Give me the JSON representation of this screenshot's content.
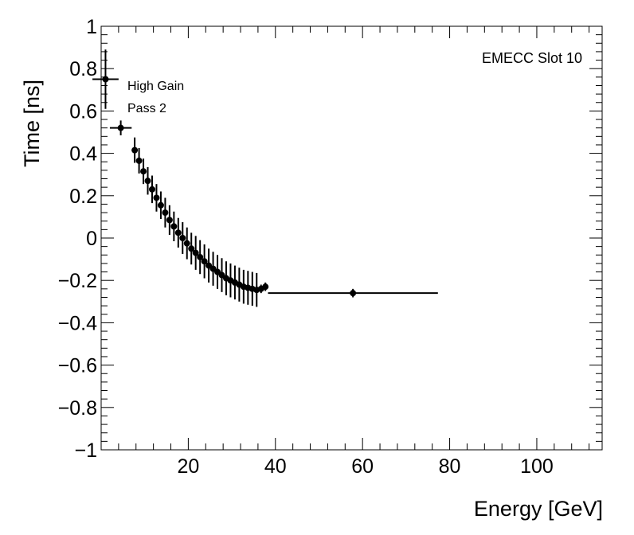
{
  "chart_data": {
    "type": "scatter",
    "title": "",
    "xlabel": "Energy [GeV]",
    "ylabel": "Time [ns]",
    "xlim": [
      0,
      115
    ],
    "ylim": [
      -1,
      1
    ],
    "x_ticks": [
      20,
      40,
      60,
      80,
      100
    ],
    "x_tick_labels": [
      "20",
      "40",
      "60",
      "80",
      "100"
    ],
    "y_ticks": [
      -1,
      -0.8,
      -0.6,
      -0.4,
      -0.2,
      0,
      0.2,
      0.4,
      0.6,
      0.8,
      1
    ],
    "y_tick_labels": [
      "−1",
      "−0.8",
      "−0.6",
      "−0.4",
      "−0.2",
      "0",
      "0.2",
      "0.4",
      "0.6",
      "0.8",
      "1"
    ],
    "annotations": [
      "High Gain",
      "Pass 2"
    ],
    "corner_label": "EMECC Slot 10",
    "series": [
      {
        "name": "High Gain Pass 2",
        "marker_color": "#000000",
        "points": [
          {
            "x": 1.0,
            "y": 0.75,
            "xerr": 3.0,
            "yerr": 0.14
          },
          {
            "x": 4.5,
            "y": 0.52,
            "xerr": 2.5,
            "yerr": 0.035
          },
          {
            "x": 7.7,
            "y": 0.415,
            "xerr": 0.5,
            "yerr": 0.06
          },
          {
            "x": 8.7,
            "y": 0.365,
            "xerr": 0.5,
            "yerr": 0.06
          },
          {
            "x": 9.7,
            "y": 0.315,
            "xerr": 0.5,
            "yerr": 0.06
          },
          {
            "x": 10.7,
            "y": 0.27,
            "xerr": 0.5,
            "yerr": 0.065
          },
          {
            "x": 11.7,
            "y": 0.23,
            "xerr": 0.5,
            "yerr": 0.065
          },
          {
            "x": 12.7,
            "y": 0.19,
            "xerr": 0.5,
            "yerr": 0.065
          },
          {
            "x": 13.7,
            "y": 0.155,
            "xerr": 0.5,
            "yerr": 0.065
          },
          {
            "x": 14.7,
            "y": 0.12,
            "xerr": 0.5,
            "yerr": 0.07
          },
          {
            "x": 15.7,
            "y": 0.085,
            "xerr": 0.5,
            "yerr": 0.07
          },
          {
            "x": 16.7,
            "y": 0.055,
            "xerr": 0.5,
            "yerr": 0.07
          },
          {
            "x": 17.7,
            "y": 0.025,
            "xerr": 0.5,
            "yerr": 0.07
          },
          {
            "x": 18.7,
            "y": 0.0,
            "xerr": 0.5,
            "yerr": 0.075
          },
          {
            "x": 19.7,
            "y": -0.025,
            "xerr": 0.5,
            "yerr": 0.075
          },
          {
            "x": 20.7,
            "y": -0.05,
            "xerr": 0.5,
            "yerr": 0.075
          },
          {
            "x": 21.7,
            "y": -0.07,
            "xerr": 0.5,
            "yerr": 0.08
          },
          {
            "x": 22.7,
            "y": -0.09,
            "xerr": 0.5,
            "yerr": 0.08
          },
          {
            "x": 23.7,
            "y": -0.11,
            "xerr": 0.5,
            "yerr": 0.08
          },
          {
            "x": 24.7,
            "y": -0.13,
            "xerr": 0.5,
            "yerr": 0.08
          },
          {
            "x": 25.7,
            "y": -0.145,
            "xerr": 0.5,
            "yerr": 0.08
          },
          {
            "x": 26.7,
            "y": -0.16,
            "xerr": 0.5,
            "yerr": 0.08
          },
          {
            "x": 27.7,
            "y": -0.175,
            "xerr": 0.5,
            "yerr": 0.08
          },
          {
            "x": 28.7,
            "y": -0.19,
            "xerr": 0.5,
            "yerr": 0.08
          },
          {
            "x": 29.7,
            "y": -0.2,
            "xerr": 0.5,
            "yerr": 0.08
          },
          {
            "x": 30.7,
            "y": -0.21,
            "xerr": 0.5,
            "yerr": 0.08
          },
          {
            "x": 31.7,
            "y": -0.22,
            "xerr": 0.5,
            "yerr": 0.08
          },
          {
            "x": 32.7,
            "y": -0.23,
            "xerr": 0.5,
            "yerr": 0.08
          },
          {
            "x": 33.7,
            "y": -0.235,
            "xerr": 0.5,
            "yerr": 0.08
          },
          {
            "x": 34.7,
            "y": -0.24,
            "xerr": 0.5,
            "yerr": 0.08
          },
          {
            "x": 35.7,
            "y": -0.245,
            "xerr": 0.5,
            "yerr": 0.08
          },
          {
            "x": 36.7,
            "y": -0.24,
            "xerr": 0.5,
            "yerr": 0.02
          },
          {
            "x": 37.7,
            "y": -0.23,
            "xerr": 0.7,
            "yerr": 0.02
          },
          {
            "x": 57.8,
            "y": -0.26,
            "xerr": 19.5,
            "yerr": 0.02
          }
        ]
      }
    ]
  }
}
